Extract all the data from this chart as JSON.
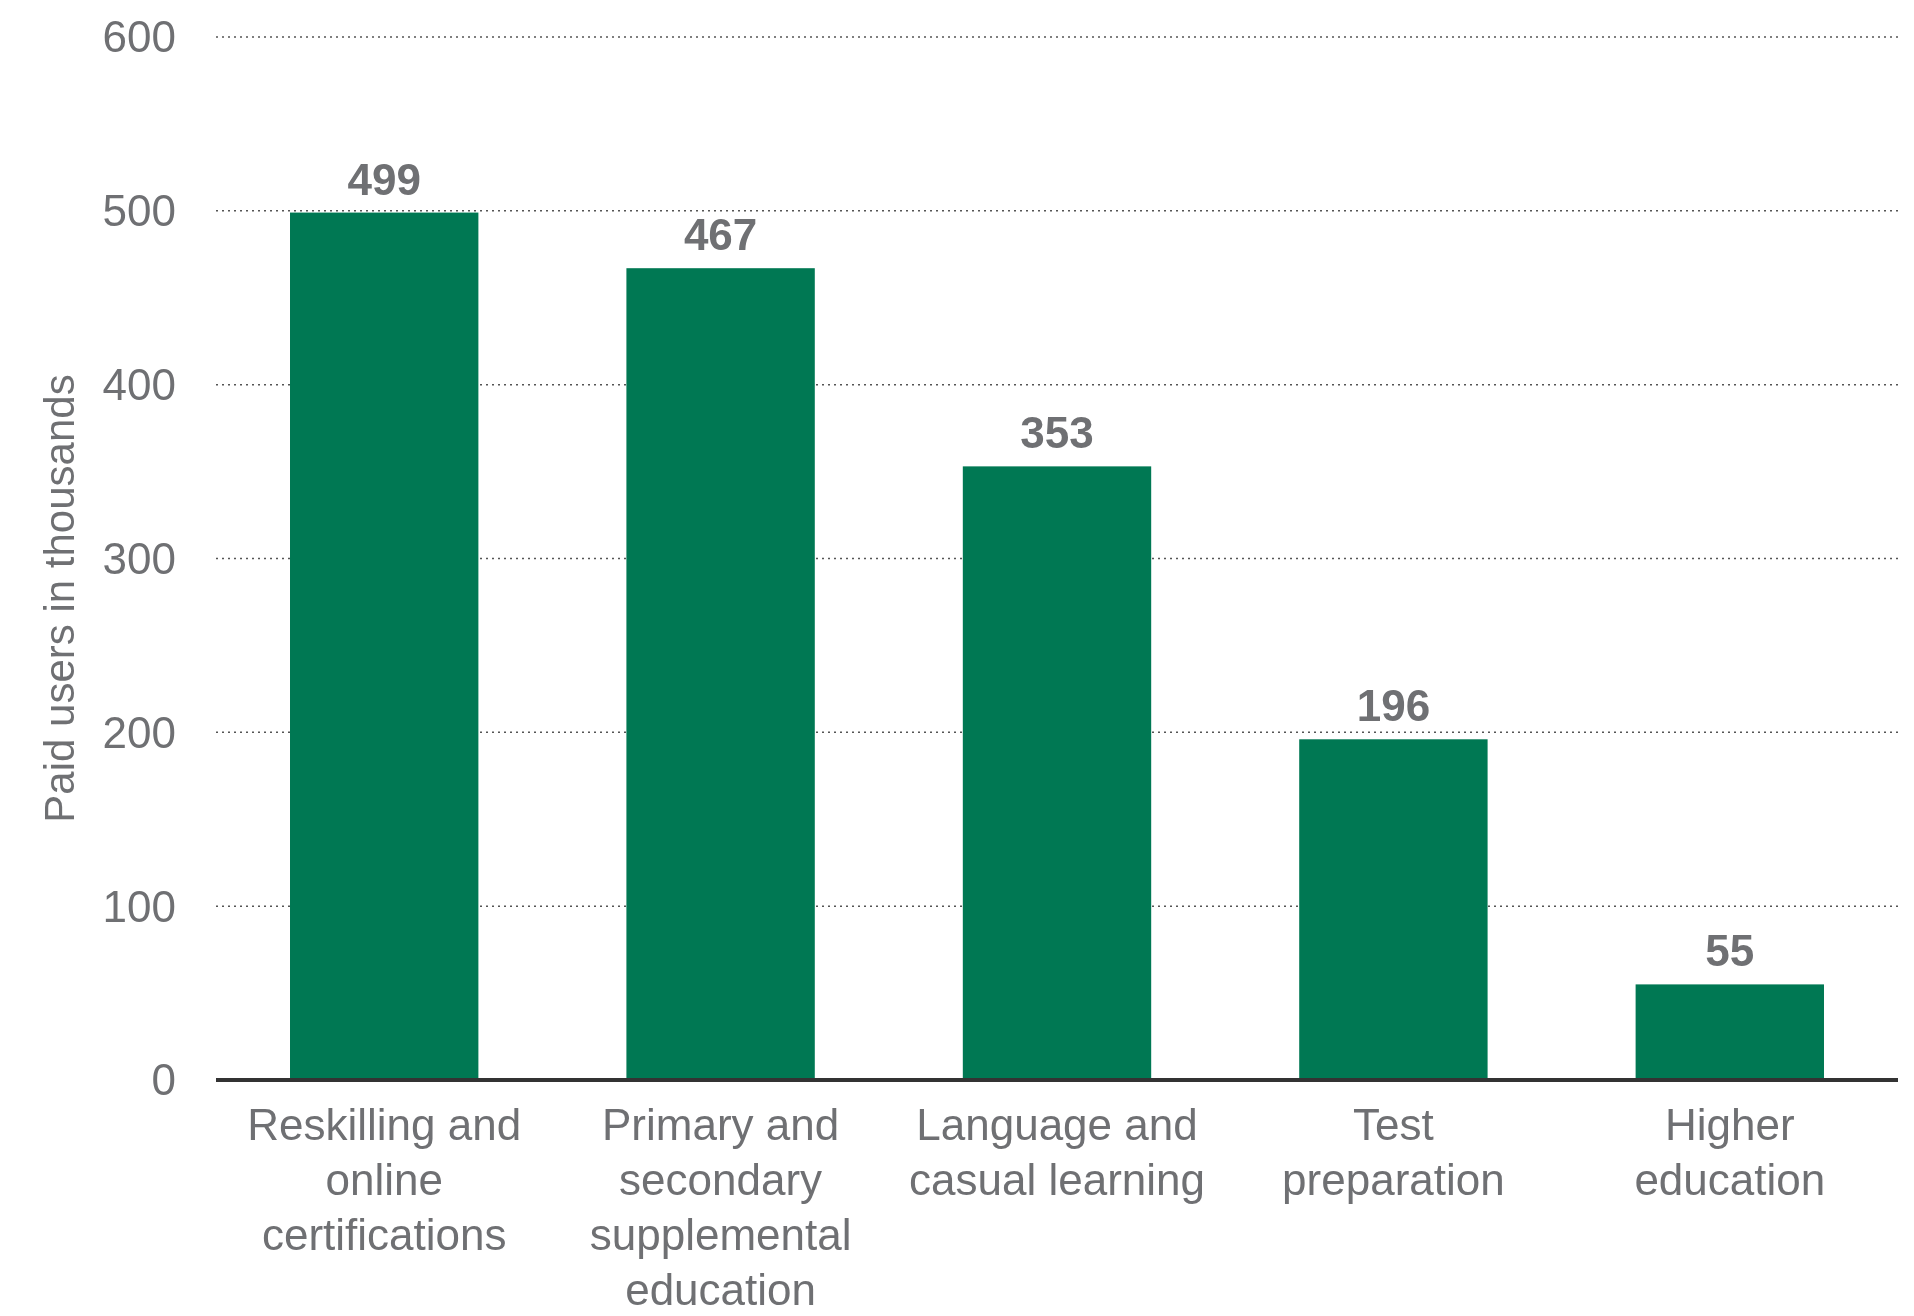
{
  "chart_data": {
    "type": "bar",
    "ylabel": "Paid users in thousands",
    "categories": [
      "Reskilling and\nonline\ncertifications",
      "Primary and\nsecondary\nsupplemental\neducation",
      "Language and\ncasual learning",
      "Test\npreparation",
      "Higher\neducation"
    ],
    "values": [
      499,
      467,
      353,
      196,
      55
    ],
    "color": "#007853",
    "ylim": [
      0,
      600
    ],
    "yticks": [
      0,
      100,
      200,
      300,
      400,
      500,
      600
    ],
    "grid": "y",
    "data_labels": true
  }
}
